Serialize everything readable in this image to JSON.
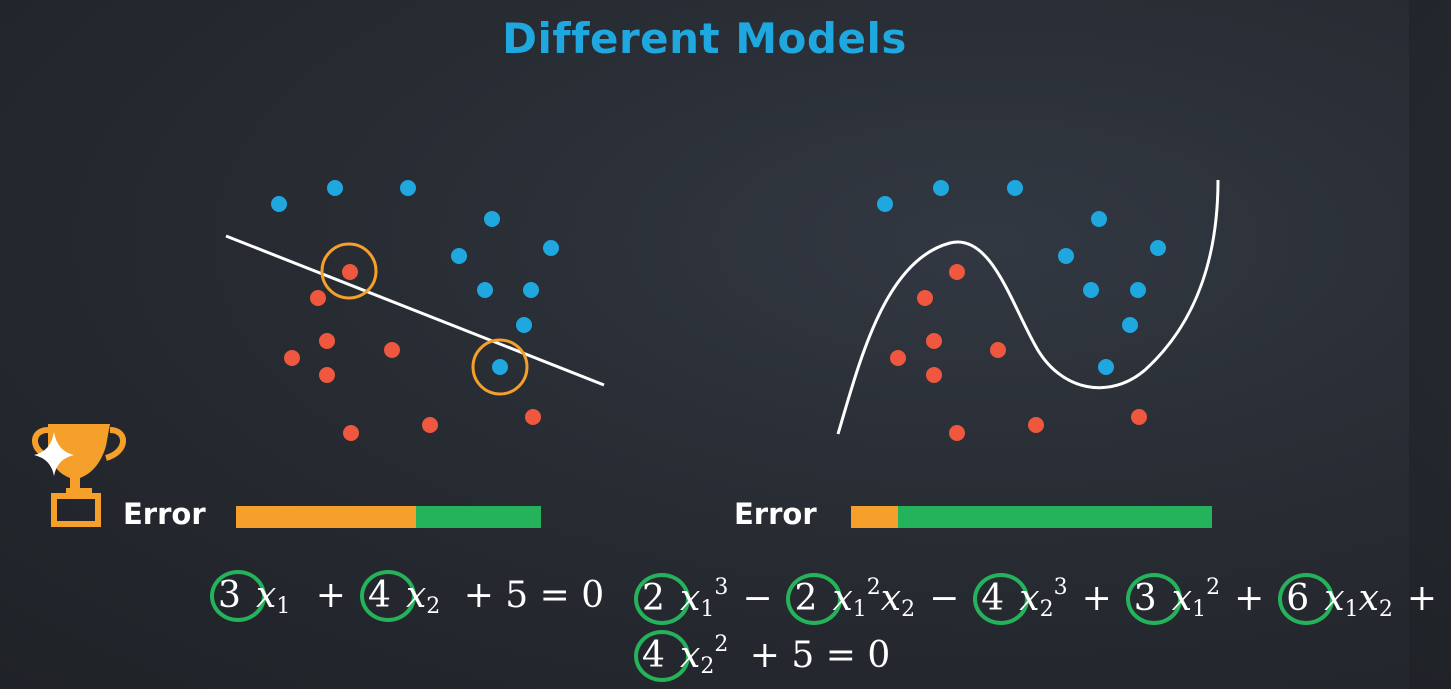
{
  "title": "Different Models",
  "colors": {
    "title": "#1fa7df",
    "blue_point": "#1fa7df",
    "red_point": "#f0573f",
    "highlight_ring": "#f5a02a",
    "error_bar": "#f5a02a",
    "correct_bar": "#24b35a",
    "coefficient_ring": "#24b35a",
    "boundary": "#ffffff"
  },
  "trophy": {
    "icon": "trophy-icon",
    "sparkle": "sparkle-icon"
  },
  "left_model": {
    "error_label": "Error",
    "error_fraction": 0.59,
    "equation_terms": [
      {
        "coef": "3",
        "var": "x",
        "sub": "1",
        "sup": ""
      },
      {
        "op": "+"
      },
      {
        "coef": "4",
        "var": "x",
        "sub": "2",
        "sup": ""
      },
      {
        "op": "+"
      },
      {
        "plain": "5"
      },
      {
        "op": "="
      },
      {
        "plain": "0"
      }
    ]
  },
  "right_model": {
    "error_label": "Error",
    "error_fraction": 0.13,
    "equation_line1": "2x₁³ − 2x₁²x₂ − 4x₂³ + 3x₁² + 6x₁x₂ +",
    "equation_line2": "4x₂² + 5 = 0"
  },
  "eq_left": {
    "c1": "3",
    "v1": "x",
    "s1": "1",
    "op1": "+",
    "c2": "4",
    "v2": "x",
    "s2": "2",
    "rest": "+ 5 = 0"
  },
  "eq_right": {
    "l1": {
      "c1": "2",
      "v1": "x",
      "s1": "1",
      "p1": "3",
      "op1": "−",
      "c2": "2",
      "v2": "x",
      "s2": "1",
      "p2": "2",
      "v2b": "x",
      "s2b": "2",
      "op2": "−",
      "c3": "4",
      "v3": "x",
      "s3": "2",
      "p3": "3",
      "op3": "+",
      "c4": "3",
      "v4": "x",
      "s4": "1",
      "p4": "2",
      "op4": "+",
      "c5": "6",
      "v5": "x",
      "s5": "1",
      "v5b": "x",
      "s5b": "2",
      "op5": "+"
    },
    "l2": {
      "c1": "4",
      "v1": "x",
      "s1": "2",
      "p1": "2",
      "rest": "+ 5 = 0"
    }
  }
}
